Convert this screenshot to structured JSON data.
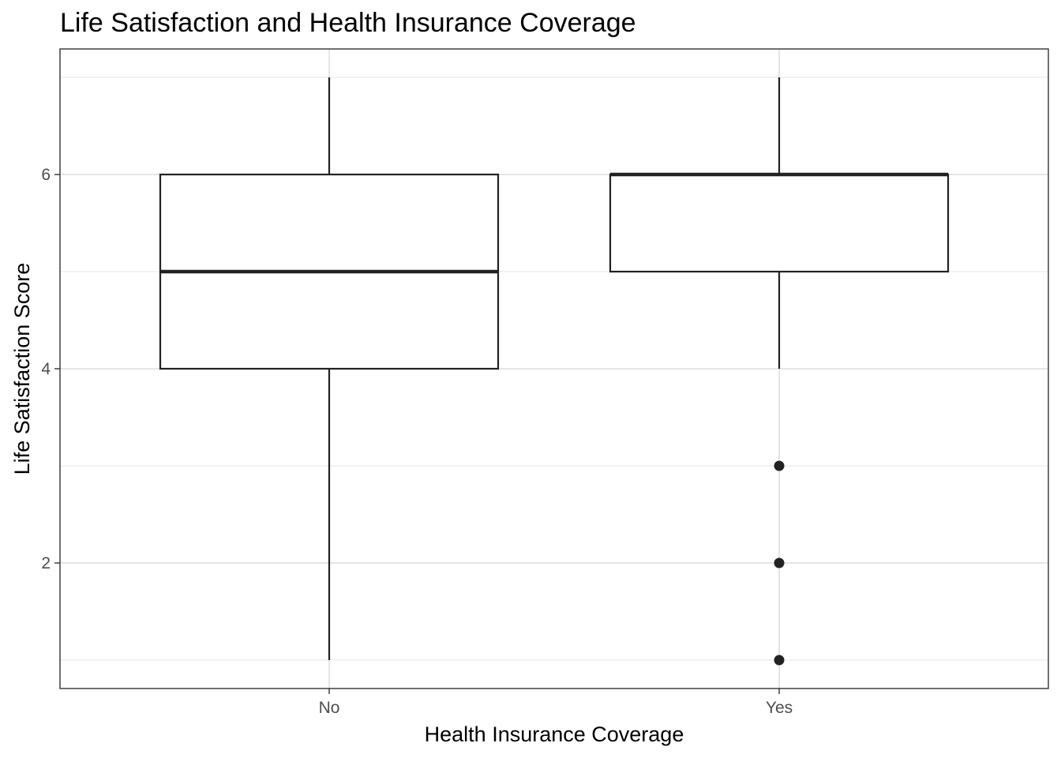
{
  "chart_data": {
    "type": "boxplot",
    "title": "Life Satisfaction and Health Insurance Coverage",
    "xlabel": "Health Insurance Coverage",
    "ylabel": "Life Satisfaction Score",
    "categories": [
      "No",
      "Yes"
    ],
    "boxes": [
      {
        "category": "No",
        "min": 1,
        "q1": 4,
        "median": 5,
        "q3": 6,
        "max": 7,
        "outliers": []
      },
      {
        "category": "Yes",
        "min": 4,
        "q1": 5,
        "median": 6,
        "q3": 6,
        "max": 7,
        "outliers": [
          3,
          2,
          1
        ]
      }
    ],
    "ylim": [
      0.7,
      7.3
    ],
    "yticks": [
      2,
      4,
      6
    ],
    "y_minor_gridlines": [
      1,
      3,
      5,
      7
    ],
    "grid": true,
    "legend": "none",
    "colors": {
      "box_fill": "#ffffff",
      "box_stroke": "#222222",
      "grid": "#e5e5e5",
      "tick_label": "#4d4d4d"
    }
  }
}
